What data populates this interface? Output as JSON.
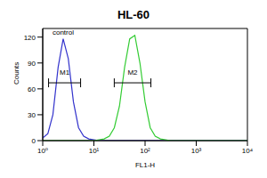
{
  "chart_data": {
    "type": "line",
    "title": "HL-60",
    "x_label": "FL1-H",
    "y_label": "Counts",
    "log": "x",
    "x": [
      1,
      1.26,
      1.58,
      2,
      2.51,
      3.16,
      3.98,
      5.01,
      6.31,
      7.94,
      10,
      12.6,
      15.8,
      20,
      25.1,
      31.6,
      39.8,
      50.1,
      63.1,
      79.4,
      100,
      126,
      158,
      200,
      251,
      316,
      398,
      501,
      631,
      794,
      1000,
      10000
    ],
    "series": [
      {
        "name": "control",
        "color": "#3333cc",
        "values": [
          3,
          8,
          30,
          85,
          118,
          95,
          45,
          15,
          5,
          2,
          1,
          0,
          0,
          0,
          0,
          0,
          0,
          0,
          0,
          0,
          0,
          0,
          0,
          0,
          0,
          0,
          0,
          0,
          0,
          0,
          0,
          0
        ]
      },
      {
        "color": "#33cc33",
        "values": [
          0,
          0,
          0,
          0,
          0,
          0,
          0,
          0,
          0,
          0,
          0,
          1,
          2,
          5,
          15,
          40,
          85,
          118,
          122,
          90,
          45,
          15,
          5,
          2,
          1,
          0,
          0,
          0,
          0,
          0,
          0,
          0
        ]
      }
    ],
    "xlim": [
      1,
      10000
    ],
    "xticks": [
      {
        "value": 1,
        "label": "10⁰"
      },
      {
        "value": 10,
        "label": "10¹"
      },
      {
        "value": 100,
        "label": "10²"
      },
      {
        "value": 1000,
        "label": "10³"
      },
      {
        "value": 10000,
        "label": "10⁴"
      }
    ],
    "ylim": [
      0,
      130
    ],
    "yticks": [
      0,
      30,
      60,
      90,
      120
    ],
    "markers": [
      {
        "label": "M1",
        "range": [
          1.3,
          5.5
        ],
        "y": 67
      },
      {
        "label": "M2",
        "range": [
          25,
          130
        ],
        "y": 67
      }
    ]
  }
}
